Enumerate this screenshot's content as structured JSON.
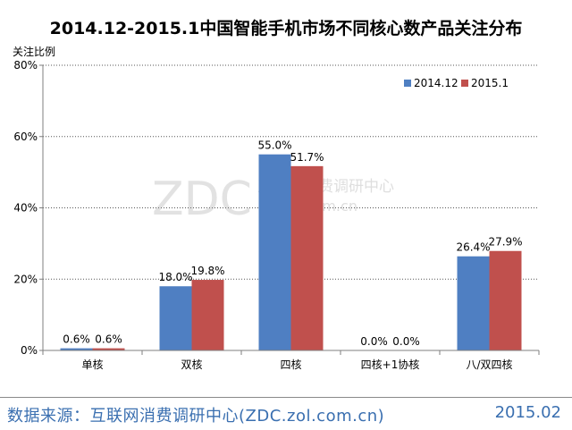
{
  "chart_data": {
    "type": "bar",
    "title": "2014.12-2015.1中国智能手机市场不同核心数产品关注分布",
    "ylabel": "关注比例",
    "xlabel": "",
    "categories": [
      "单核",
      "双核",
      "四核",
      "四核+1协核",
      "八/双四核"
    ],
    "series": [
      {
        "name": "2014.12",
        "values": [
          0.6,
          18.0,
          55.0,
          0.0,
          26.4
        ],
        "labels": [
          "0.6%",
          "18.0%",
          "55.0%",
          "0.0%",
          "26.4%"
        ],
        "color": "#4f7fc2"
      },
      {
        "name": "2015.1",
        "values": [
          0.6,
          19.8,
          51.7,
          0.0,
          27.9
        ],
        "labels": [
          "0.6%",
          "19.8%",
          "51.7%",
          "0.0%",
          "27.9%"
        ],
        "color": "#c0504d"
      }
    ],
    "ylim": [
      0,
      80
    ],
    "yticks": [
      0,
      20,
      40,
      60,
      80
    ],
    "ytick_labels": [
      "0%",
      "20%",
      "40%",
      "60%",
      "80%"
    ],
    "grid": true,
    "legend_position": "top-right"
  },
  "watermark": {
    "logo": "ZDC",
    "text_cn": "互联网消费调研中心",
    "url": "dc.zol.com.cn"
  },
  "footer": {
    "source": "数据来源：互联网消费调研中心(ZDC.zol.com.cn)",
    "date": "2015.02"
  }
}
